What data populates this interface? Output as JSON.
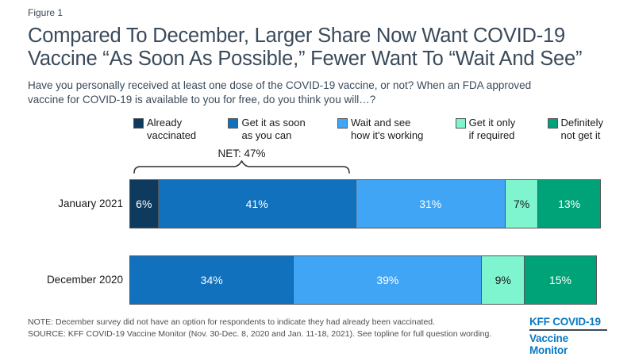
{
  "figure_label": "Figure 1",
  "header": {
    "title_lines": [
      "Compared To December, Larger Share Now Want COVID-19",
      "Vaccine “As Soon As Possible,” Fewer Want To “Wait And See”"
    ],
    "subtitle_lines": [
      "Have you personally received at least one dose of the COVID-19 vaccine, or not? When an FDA approved",
      "vaccine for COVID-19 is available to you for free, do you think you will…?"
    ]
  },
  "chart_data": {
    "type": "bar",
    "variant": "horizontal-stacked",
    "title": "Compared To December, Larger Share Now Want COVID-19 Vaccine “As Soon As Possible,” Fewer Want To “Wait And See”",
    "subtitle": "Have you personally received at least one dose of the COVID-19 vaccine, or not? When an FDA approved vaccine for COVID-19 is available to you for free, do you think you will…?",
    "categories": [
      "January 2021",
      "December 2020"
    ],
    "series": [
      {
        "name": "Already vaccinated",
        "legend_label": "Already\nvaccinated",
        "color": "#0E3A5D",
        "label_color": "#FFFFFF",
        "values": [
          6,
          null
        ]
      },
      {
        "name": "Get it as soon as you can",
        "legend_label": "Get it as soon\nas you can",
        "color": "#1171BD",
        "label_color": "#FFFFFF",
        "values": [
          41,
          34
        ]
      },
      {
        "name": "Wait and see how it's working",
        "legend_label": "Wait and see\nhow it's working",
        "color": "#41A5F5",
        "label_color": "#FFFFFF",
        "values": [
          31,
          39
        ]
      },
      {
        "name": "Get it only if required",
        "legend_label": "Get it only\nif required",
        "color": "#7EF4CF",
        "label_color": "#1A1A1A",
        "values": [
          7,
          9
        ]
      },
      {
        "name": "Definitely not get it",
        "legend_label": "Definitely\nnot get it",
        "color": "#00A377",
        "label_color": "#FFFFFF",
        "values": [
          13,
          15
        ]
      }
    ],
    "value_suffix": "%",
    "annotation": {
      "label": "NET: 47%",
      "value": 47,
      "category": "January 2021",
      "covers_series": [
        "Already vaccinated",
        "Get it as soon as you can"
      ]
    },
    "xlim": [
      0,
      100
    ],
    "legend_position": "top",
    "grid": false
  },
  "notes": {
    "note": "NOTE: December survey did not have an option for respondents to indicate they had already been vaccinated.",
    "source": "SOURCE: KFF COVID-19 Vaccine Monitor (Nov. 30-Dec. 8, 2020 and Jan. 11-18, 2021). See topline for full question wording."
  },
  "logo": {
    "line1": "KFF COVID-19",
    "line2": "Vaccine Monitor",
    "color": "#0A79C2"
  },
  "colors": {
    "title_text": "#3A4A5A",
    "body_text": "#1A1A1A",
    "note_text": "#4D4D4D",
    "bar_border": "#54565A",
    "background": "#FFFFFF"
  }
}
